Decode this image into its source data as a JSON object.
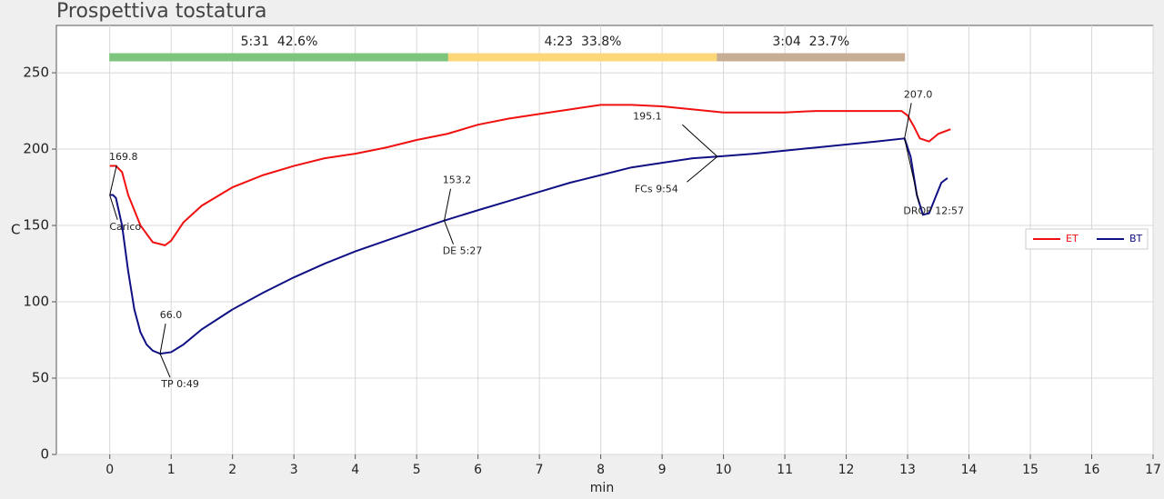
{
  "chart_data": {
    "type": "line",
    "title": "Prospettiva tostatura",
    "x_label": "min",
    "y_label": "C",
    "xlim": [
      -0.87,
      17
    ],
    "xticks": [
      0,
      1,
      2,
      3,
      4,
      5,
      6,
      7,
      8,
      9,
      10,
      11,
      12,
      13,
      14,
      15,
      16,
      17
    ],
    "ylim": [
      0,
      281
    ],
    "yticks": [
      0,
      50,
      100,
      150,
      200,
      250
    ],
    "grid": true,
    "legend": "right",
    "phases": [
      {
        "label": "5:31  42.6%",
        "start": 0,
        "end": 5.52,
        "color": "#7dc47d"
      },
      {
        "label": "4:23  33.8%",
        "start": 5.52,
        "end": 9.9,
        "color": "#fdd77a"
      },
      {
        "label": "3:04  23.7%",
        "start": 9.9,
        "end": 12.95,
        "color": "#c8ad95"
      }
    ],
    "series": [
      {
        "name": "ET",
        "color": "#f01010",
        "x": [
          0,
          0.1,
          0.2,
          0.3,
          0.5,
          0.7,
          0.9,
          1.0,
          1.2,
          1.5,
          2,
          2.5,
          3,
          3.5,
          4,
          4.5,
          5,
          5.5,
          6,
          6.5,
          7,
          7.5,
          8,
          8.5,
          9,
          9.5,
          10,
          10.5,
          11,
          11.5,
          12,
          12.5,
          12.9,
          13.0,
          13.1,
          13.2,
          13.35,
          13.5,
          13.7
        ],
        "values": [
          189,
          189,
          185,
          170,
          150,
          139,
          137,
          140,
          152,
          163,
          175,
          183,
          189,
          194,
          197,
          201,
          206,
          210,
          216,
          220,
          223,
          226,
          229,
          229,
          228,
          226,
          224,
          224,
          224,
          225,
          225,
          225,
          225,
          222,
          215,
          207,
          205,
          210,
          213
        ]
      },
      {
        "name": "BT",
        "color": "#101085",
        "x": [
          0,
          0.05,
          0.1,
          0.2,
          0.3,
          0.4,
          0.5,
          0.6,
          0.7,
          0.82,
          1,
          1.2,
          1.5,
          2,
          2.5,
          3,
          3.5,
          4,
          4.5,
          5,
          5.45,
          6,
          6.5,
          7,
          7.5,
          8,
          8.5,
          9,
          9.5,
          9.9,
          10.5,
          11,
          11.5,
          12,
          12.5,
          12.95,
          13.05,
          13.15,
          13.25,
          13.35,
          13.45,
          13.55,
          13.65
        ],
        "values": [
          170,
          170,
          168,
          150,
          120,
          95,
          80,
          72,
          68,
          66,
          67,
          72,
          82,
          95,
          106,
          116,
          125,
          133,
          140,
          147,
          153.2,
          160,
          166,
          172,
          178,
          183,
          188,
          191,
          194,
          195.1,
          197,
          199,
          201,
          203,
          205,
          207,
          195,
          170,
          157,
          158,
          168,
          178,
          181
        ]
      }
    ],
    "annotations": {
      "x": [
        0,
        0.82,
        5.45,
        9.9,
        12.95
      ],
      "values": [
        169.8,
        66,
        153.2,
        195.1,
        207
      ],
      "value_labels": [
        "169.8",
        "66.0",
        "153.2",
        "195.1",
        "207.0"
      ],
      "events": [
        "Carico",
        "TP 0:49",
        "DE 5:27",
        "FCs 9:54",
        "DROP 12:57"
      ]
    }
  }
}
